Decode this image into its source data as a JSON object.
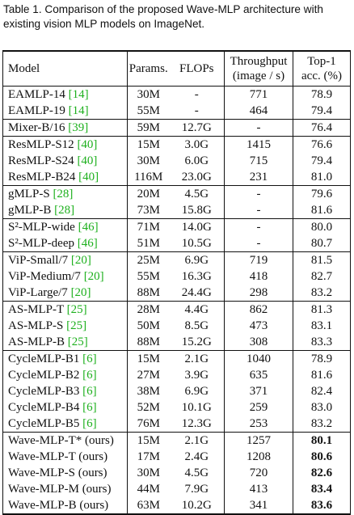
{
  "caption": [
    "Table 1. Comparison of the proposed Wave-MLP architecture with",
    "existing vision MLP models on ImageNet."
  ],
  "table": {
    "header": [
      "Model",
      "Params.",
      "FLOPs",
      [
        "Throughput",
        "(image / s)"
      ],
      [
        "Top-1",
        "acc. (%)"
      ]
    ],
    "groups": [
      [
        [
          "EAMLP-14",
          "[14]",
          "30M",
          "-",
          "771",
          "78.9"
        ],
        [
          "EAMLP-19",
          "[14]",
          "55M",
          "-",
          "464",
          "79.4"
        ]
      ],
      [
        [
          "Mixer-B/16",
          "[39]",
          "59M",
          "12.7G",
          "-",
          "76.4"
        ]
      ],
      [
        [
          "ResMLP-S12",
          "[40]",
          "15M",
          "3.0G",
          "1415",
          "76.6"
        ],
        [
          "ResMLP-S24",
          "[40]",
          "30M",
          "6.0G",
          "715",
          "79.4"
        ],
        [
          "ResMLP-B24",
          "[40]",
          "116M",
          "23.0G",
          "231",
          "81.0"
        ]
      ],
      [
        [
          "gMLP-S",
          "[28]",
          "20M",
          "4.5G",
          "-",
          "79.6"
        ],
        [
          "gMLP-B",
          "[28]",
          "73M",
          "15.8G",
          "-",
          "81.6"
        ]
      ],
      [
        [
          "S²-MLP-wide",
          "[46]",
          "71M",
          "14.0G",
          "-",
          "80.0"
        ],
        [
          "S²-MLP-deep",
          "[46]",
          "51M",
          "10.5G",
          "-",
          "80.7"
        ]
      ],
      [
        [
          "ViP-Small/7",
          "[20]",
          "25M",
          "6.9G",
          "719",
          "81.5"
        ],
        [
          "ViP-Medium/7",
          "[20]",
          "55M",
          "16.3G",
          "418",
          "82.7"
        ],
        [
          "ViP-Large/7",
          "[20]",
          "88M",
          "24.4G",
          "298",
          "83.2"
        ]
      ],
      [
        [
          "AS-MLP-T",
          "[25]",
          "28M",
          "4.4G",
          "862",
          "81.3"
        ],
        [
          "AS-MLP-S",
          "[25]",
          "50M",
          "8.5G",
          "473",
          "83.1"
        ],
        [
          "AS-MLP-B",
          "[25]",
          "88M",
          "15.2G",
          "308",
          "83.3"
        ]
      ],
      [
        [
          "CycleMLP-B1",
          "[6]",
          "15M",
          "2.1G",
          "1040",
          "78.9"
        ],
        [
          "CycleMLP-B2",
          "[6]",
          "27M",
          "3.9G",
          "635",
          "81.6"
        ],
        [
          "CycleMLP-B3",
          "[6]",
          "38M",
          "6.9G",
          "371",
          "82.4"
        ],
        [
          "CycleMLP-B4",
          "[6]",
          "52M",
          "10.1G",
          "259",
          "83.0"
        ],
        [
          "CycleMLP-B5",
          "[6]",
          "76M",
          "12.3G",
          "253",
          "83.2"
        ]
      ],
      [
        [
          "Wave-MLP-T* (ours)",
          null,
          "15M",
          "2.1G",
          "1257",
          "80.1"
        ],
        [
          "Wave-MLP-T (ours)",
          null,
          "17M",
          "2.4G",
          "1208",
          "80.6"
        ],
        [
          "Wave-MLP-S (ours)",
          null,
          "30M",
          "4.5G",
          "720",
          "82.6"
        ],
        [
          "Wave-MLP-M (ours)",
          null,
          "44M",
          "7.9G",
          "413",
          "83.4"
        ],
        [
          "Wave-MLP-B (ours)",
          null,
          "63M",
          "10.2G",
          "341",
          "83.6"
        ]
      ]
    ]
  }
}
